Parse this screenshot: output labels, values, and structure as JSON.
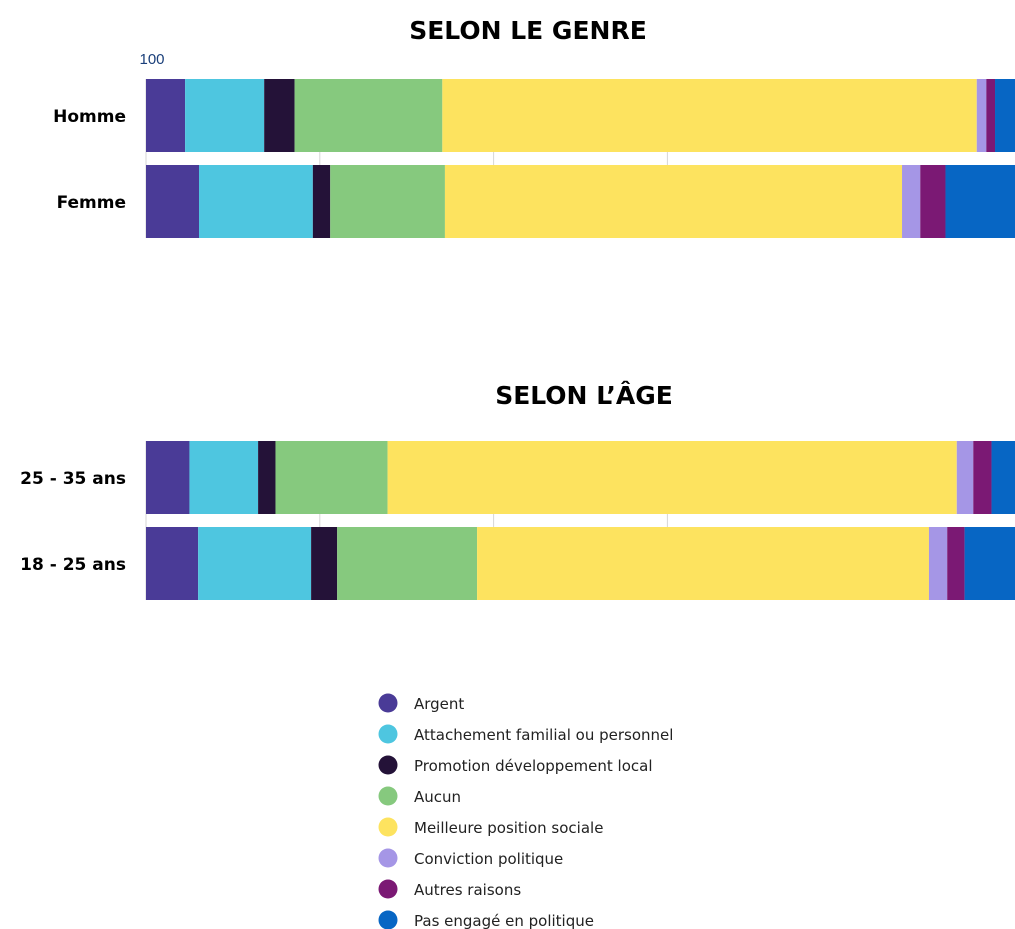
{
  "chart_data": [
    {
      "type": "bar",
      "orientation": "horizontal",
      "stacked": true,
      "title": "SELON LE GENRE",
      "categories": [
        "Homme",
        "Femme"
      ],
      "xlim": [
        0,
        100
      ],
      "tick_labels": [
        "100"
      ],
      "grid": true,
      "series": [
        {
          "name": "Argent",
          "values": [
            4.5,
            6.1
          ]
        },
        {
          "name": "Attachement familial ou personnel",
          "values": [
            9.1,
            13.1
          ]
        },
        {
          "name": "Promotion développement local",
          "values": [
            3.5,
            2.0
          ]
        },
        {
          "name": "Aucun",
          "values": [
            17.0,
            13.2
          ]
        },
        {
          "name": "Meilleure position sociale",
          "values": [
            61.5,
            52.6
          ]
        },
        {
          "name": "Conviction politique",
          "values": [
            1.1,
            2.1
          ]
        },
        {
          "name": "Autres raisons",
          "values": [
            1.0,
            2.9
          ]
        },
        {
          "name": "Pas engagé en politique",
          "values": [
            2.3,
            8.0
          ]
        }
      ]
    },
    {
      "type": "bar",
      "orientation": "horizontal",
      "stacked": true,
      "title": "SELON L’ÂGE",
      "categories": [
        "25 - 35 ans",
        "18 - 25 ans"
      ],
      "xlim": [
        0,
        100
      ],
      "grid": true,
      "series": [
        {
          "name": "Argent",
          "values": [
            5.0,
            6.0
          ]
        },
        {
          "name": "Attachement familial ou personnel",
          "values": [
            7.9,
            13.0
          ]
        },
        {
          "name": "Promotion développement local",
          "values": [
            2.0,
            3.0
          ]
        },
        {
          "name": "Aucun",
          "values": [
            12.9,
            16.1
          ]
        },
        {
          "name": "Meilleure position sociale",
          "values": [
            65.5,
            52.0
          ]
        },
        {
          "name": "Conviction politique",
          "values": [
            1.9,
            2.1
          ]
        },
        {
          "name": "Autres raisons",
          "values": [
            2.1,
            2.0
          ]
        },
        {
          "name": "Pas engagé en politique",
          "values": [
            2.8,
            5.8
          ]
        }
      ]
    }
  ],
  "legend": {
    "placement": "bottom",
    "items": [
      {
        "label": "Argent",
        "color": "#4a3b97"
      },
      {
        "label": "Attachement familial ou personnel",
        "color": "#4ec6e0"
      },
      {
        "label": "Promotion développement local",
        "color": "#241238"
      },
      {
        "label": "Aucun",
        "color": "#86c97e"
      },
      {
        "label": "Meilleure position sociale",
        "color": "#fde35f"
      },
      {
        "label": "Conviction politique",
        "color": "#a596e6"
      },
      {
        "label": "Autres raisons",
        "color": "#7b1974"
      },
      {
        "label": "Pas engagé en politique",
        "color": "#0766c4"
      }
    ]
  }
}
